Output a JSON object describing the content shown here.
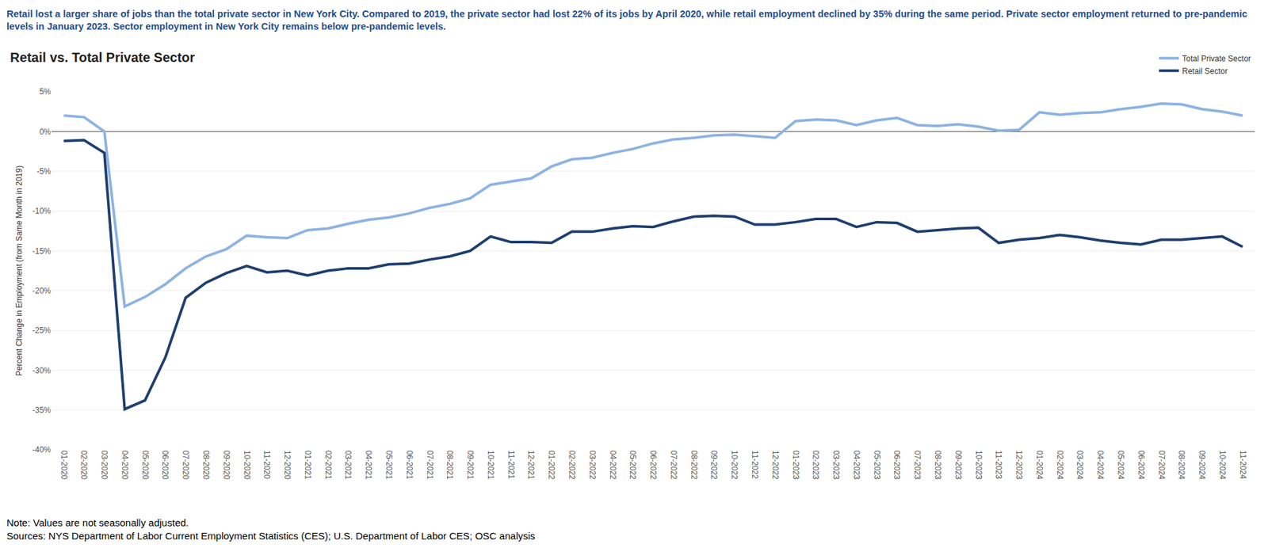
{
  "chart_data": {
    "type": "line",
    "subtitle": "Retail lost a larger share of jobs than the total private sector in New York City. Compared to 2019, the private sector had lost 22% of its jobs by April 2020, while retail employment declined by 35% during the same period. Private sector employment returned to pre-pandemic levels in January 2023. Sector employment in New York City remains below pre-pandemic levels.",
    "title": "Retail vs. Total Private Sector",
    "y_label": "Percent Change in Employment (from Same Month in 2019)",
    "annotations": [
      "Note: Values are not seasonally adjusted.",
      "Sources: NYS Department of Labor Current Employment Statistics (CES); U.S. Department of Labor CES; OSC analysis"
    ],
    "categories": [
      "01-2020",
      "02-2020",
      "03-2020",
      "04-2020",
      "05-2020",
      "06-2020",
      "07-2020",
      "08-2020",
      "09-2020",
      "10-2020",
      "11-2020",
      "12-2020",
      "01-2021",
      "02-2021",
      "03-2021",
      "04-2021",
      "05-2021",
      "06-2021",
      "07-2021",
      "08-2021",
      "09-2021",
      "10-2021",
      "11-2021",
      "12-2021",
      "01-2022",
      "02-2022",
      "03-2022",
      "04-2022",
      "05-2022",
      "06-2022",
      "07-2022",
      "08-2022",
      "09-2022",
      "10-2022",
      "11-2022",
      "12-2022",
      "01-2023",
      "02-2023",
      "03-2023",
      "04-2023",
      "05-2023",
      "06-2023",
      "07-2023",
      "08-2023",
      "09-2023",
      "10-2023",
      "11-2023",
      "12-2023",
      "01-2024",
      "02-2024",
      "03-2024",
      "04-2024",
      "05-2024",
      "06-2024",
      "07-2024",
      "08-2024",
      "09-2024",
      "10-2024",
      "11-2024"
    ],
    "series": [
      {
        "name": "Total Private Sector",
        "color": "#8db3e2",
        "values": [
          2.0,
          1.8,
          0.0,
          -22.0,
          -20.8,
          -19.2,
          -17.2,
          -15.7,
          -14.8,
          -13.1,
          -13.3,
          -13.4,
          -12.4,
          -12.2,
          -11.6,
          -11.1,
          -10.8,
          -10.3,
          -9.6,
          -9.1,
          -8.4,
          -6.7,
          -6.3,
          -5.9,
          -4.4,
          -3.5,
          -3.3,
          -2.7,
          -2.2,
          -1.5,
          -1.0,
          -0.8,
          -0.5,
          -0.4,
          -0.6,
          -0.8,
          1.3,
          1.5,
          1.4,
          0.8,
          1.4,
          1.7,
          0.8,
          0.7,
          0.9,
          0.6,
          0.1,
          0.2,
          2.4,
          2.1,
          2.3,
          2.4,
          2.8,
          3.1,
          3.5,
          3.4,
          2.8,
          2.5,
          2.0
        ]
      },
      {
        "name": "Retail Sector",
        "color": "#1f3f6e",
        "values": [
          -1.2,
          -1.1,
          -2.7,
          -34.9,
          -33.8,
          -28.4,
          -20.9,
          -19.0,
          -17.8,
          -16.9,
          -17.7,
          -17.5,
          -18.1,
          -17.5,
          -17.2,
          -17.2,
          -16.7,
          -16.6,
          -16.1,
          -15.7,
          -15.0,
          -13.2,
          -13.9,
          -13.9,
          -14.0,
          -12.6,
          -12.6,
          -12.2,
          -11.9,
          -12.0,
          -11.3,
          -10.7,
          -10.6,
          -10.7,
          -11.7,
          -11.7,
          -11.4,
          -11.0,
          -11.0,
          -12.0,
          -11.4,
          -11.5,
          -12.6,
          -12.4,
          -12.2,
          -12.1,
          -14.0,
          -13.6,
          -13.4,
          -13.0,
          -13.3,
          -13.7,
          -14.0,
          -14.2,
          -13.6,
          -13.6,
          -13.4,
          -13.2,
          -14.5
        ]
      }
    ],
    "ylim": [
      -40,
      5
    ],
    "yticks": [
      {
        "value": -40,
        "label": "-40%"
      },
      {
        "value": -35,
        "label": "-35%"
      },
      {
        "value": -30,
        "label": "-30%"
      },
      {
        "value": -25,
        "label": "-25%"
      },
      {
        "value": -20,
        "label": "-20%"
      },
      {
        "value": -15,
        "label": "-15%"
      },
      {
        "value": -10,
        "label": "-10%"
      },
      {
        "value": -5,
        "label": "-5%"
      },
      {
        "value": 0,
        "label": "0%"
      },
      {
        "value": 5,
        "label": "5%"
      }
    ],
    "grid": true,
    "legend": "top right"
  }
}
